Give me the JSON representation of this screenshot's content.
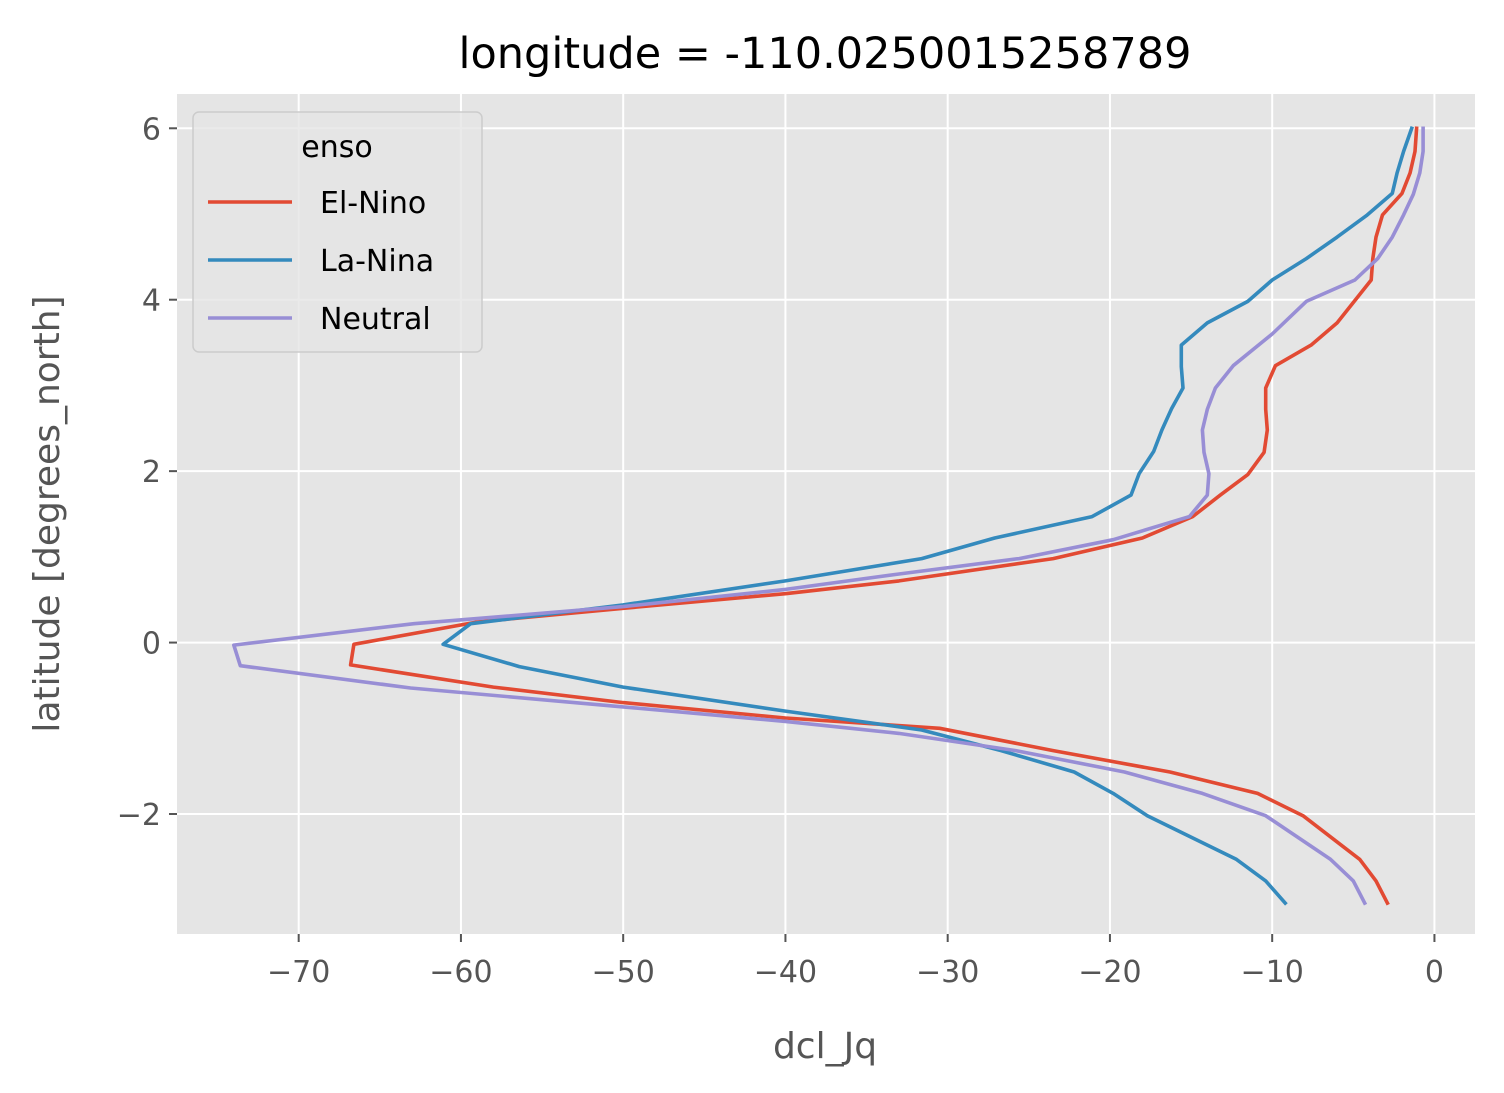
{
  "chart_data": {
    "type": "line",
    "title": "longitude = -110.0250015258789",
    "xlabel": "dcl_Jq",
    "ylabel": "latitude [degrees_north]",
    "xlim": [
      -77.5,
      2.5
    ],
    "ylim": [
      -3.4,
      6.4
    ],
    "xticks": [
      -70,
      -60,
      -50,
      -40,
      -30,
      -20,
      -10,
      0
    ],
    "xtick_labels": [
      "−70",
      "−60",
      "−50",
      "−40",
      "−30",
      "−20",
      "−10",
      "0"
    ],
    "yticks": [
      -2,
      0,
      2,
      4,
      6
    ],
    "ytick_labels": [
      "−2",
      "0",
      "2",
      "4",
      "6"
    ],
    "grid": true,
    "legend_title": "enso",
    "legend_position": "upper-left",
    "series": [
      {
        "name": "El-Nino",
        "color": "#E24A33",
        "points": [
          [
            -2.9,
            -3.04
          ],
          [
            -3.6,
            -2.78
          ],
          [
            -4.6,
            -2.53
          ],
          [
            -8.1,
            -2.02
          ],
          [
            -10.9,
            -1.76
          ],
          [
            -16.3,
            -1.51
          ],
          [
            -23.5,
            -1.26
          ],
          [
            -30.5,
            -1.0
          ],
          [
            -40.0,
            -0.88
          ],
          [
            -50.0,
            -0.7
          ],
          [
            -58.0,
            -0.52
          ],
          [
            -66.8,
            -0.26
          ],
          [
            -66.6,
            -0.02
          ],
          [
            -59.0,
            0.24
          ],
          [
            -50.0,
            0.4
          ],
          [
            -40.0,
            0.57
          ],
          [
            -33.0,
            0.72
          ],
          [
            -23.5,
            0.98
          ],
          [
            -18.0,
            1.22
          ],
          [
            -14.9,
            1.47
          ],
          [
            -13.2,
            1.72
          ],
          [
            -11.5,
            1.96
          ],
          [
            -10.5,
            2.22
          ],
          [
            -10.3,
            2.48
          ],
          [
            -10.4,
            2.72
          ],
          [
            -10.4,
            2.97
          ],
          [
            -9.8,
            3.23
          ],
          [
            -7.6,
            3.47
          ],
          [
            -6.0,
            3.73
          ],
          [
            -3.9,
            4.23
          ],
          [
            -3.8,
            4.48
          ],
          [
            -3.6,
            4.73
          ],
          [
            -3.2,
            4.99
          ],
          [
            -2.0,
            5.24
          ],
          [
            -1.5,
            5.48
          ],
          [
            -1.2,
            5.73
          ],
          [
            -1.1,
            6.0
          ]
        ]
      },
      {
        "name": "La-Nina",
        "color": "#348ABD",
        "points": [
          [
            -9.2,
            -3.04
          ],
          [
            -10.4,
            -2.78
          ],
          [
            -12.2,
            -2.53
          ],
          [
            -17.7,
            -2.02
          ],
          [
            -19.8,
            -1.76
          ],
          [
            -22.2,
            -1.51
          ],
          [
            -26.7,
            -1.26
          ],
          [
            -31.6,
            -1.02
          ],
          [
            -40.0,
            -0.8
          ],
          [
            -50.0,
            -0.52
          ],
          [
            -56.4,
            -0.28
          ],
          [
            -61.1,
            -0.02
          ],
          [
            -59.4,
            0.22
          ],
          [
            -50.0,
            0.44
          ],
          [
            -40.0,
            0.72
          ],
          [
            -31.6,
            0.98
          ],
          [
            -27.1,
            1.22
          ],
          [
            -21.1,
            1.47
          ],
          [
            -18.7,
            1.72
          ],
          [
            -18.2,
            1.97
          ],
          [
            -17.3,
            2.23
          ],
          [
            -16.8,
            2.48
          ],
          [
            -16.2,
            2.73
          ],
          [
            -15.5,
            2.97
          ],
          [
            -15.6,
            3.22
          ],
          [
            -15.6,
            3.47
          ],
          [
            -14.0,
            3.73
          ],
          [
            -11.5,
            3.98
          ],
          [
            -10.0,
            4.23
          ],
          [
            -7.9,
            4.48
          ],
          [
            -6.0,
            4.73
          ],
          [
            -4.2,
            4.98
          ],
          [
            -2.6,
            5.24
          ],
          [
            -2.3,
            5.48
          ],
          [
            -1.9,
            5.73
          ],
          [
            -1.4,
            6.0
          ]
        ]
      },
      {
        "name": "Neutral",
        "color": "#988ED5",
        "points": [
          [
            -4.3,
            -3.04
          ],
          [
            -5.0,
            -2.78
          ],
          [
            -6.4,
            -2.53
          ],
          [
            -10.4,
            -2.02
          ],
          [
            -14.3,
            -1.76
          ],
          [
            -19.1,
            -1.51
          ],
          [
            -25.8,
            -1.26
          ],
          [
            -33.0,
            -1.06
          ],
          [
            -40.0,
            -0.92
          ],
          [
            -50.0,
            -0.75
          ],
          [
            -63.1,
            -0.53
          ],
          [
            -73.6,
            -0.27
          ],
          [
            -74.0,
            -0.03
          ],
          [
            -62.9,
            0.22
          ],
          [
            -50.0,
            0.42
          ],
          [
            -40.0,
            0.62
          ],
          [
            -33.0,
            0.8
          ],
          [
            -25.6,
            0.98
          ],
          [
            -19.8,
            1.2
          ],
          [
            -15.1,
            1.47
          ],
          [
            -14.0,
            1.72
          ],
          [
            -13.9,
            1.97
          ],
          [
            -14.2,
            2.22
          ],
          [
            -14.3,
            2.48
          ],
          [
            -14.0,
            2.72
          ],
          [
            -13.5,
            2.97
          ],
          [
            -12.4,
            3.23
          ],
          [
            -10.0,
            3.6
          ],
          [
            -7.9,
            3.98
          ],
          [
            -4.9,
            4.23
          ],
          [
            -3.5,
            4.48
          ],
          [
            -2.6,
            4.73
          ],
          [
            -1.9,
            4.99
          ],
          [
            -1.3,
            5.23
          ],
          [
            -0.9,
            5.48
          ],
          [
            -0.7,
            5.73
          ],
          [
            -0.7,
            6.0
          ]
        ]
      }
    ]
  }
}
